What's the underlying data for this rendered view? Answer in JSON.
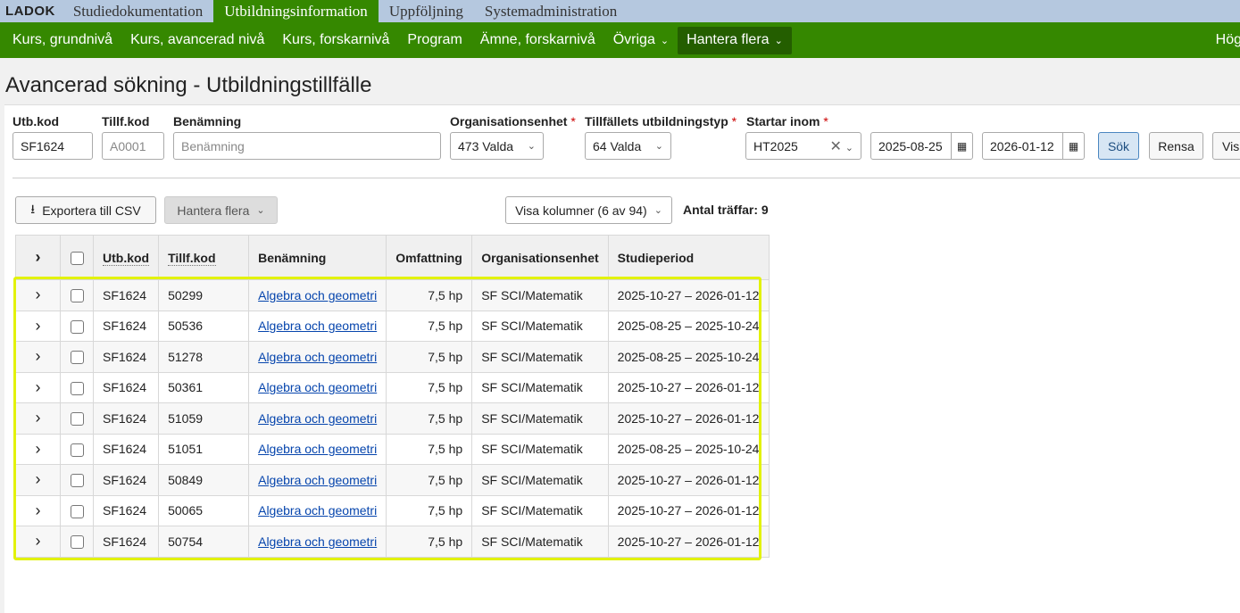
{
  "topnav": {
    "logo": "LADOK",
    "tabs": [
      "Studiedokumentation",
      "Utbildningsinformation",
      "Uppföljning",
      "Systemadministration"
    ],
    "active": 1
  },
  "subnav": {
    "items": [
      "Kurs, grundnivå",
      "Kurs, avancerad nivå",
      "Kurs, forskarnivå",
      "Program",
      "Ämne, forskarnivå",
      "Övriga",
      "Hantera flera"
    ],
    "right": "Högs"
  },
  "page_title": "Avancerad sökning - Utbildningstillfälle",
  "filters": {
    "utb_kod": {
      "label": "Utb.kod",
      "value": "SF1624"
    },
    "tillf_kod": {
      "label": "Tillf.kod",
      "placeholder": "A0001"
    },
    "benamning": {
      "label": "Benämning",
      "placeholder": "Benämning"
    },
    "org": {
      "label": "Organisationsenhet",
      "value": "473 Valda"
    },
    "typ": {
      "label": "Tillfällets utbildningstyp",
      "value": "64 Valda"
    },
    "startar": {
      "label": "Startar inom",
      "value": "HT2025",
      "from": "2025-08-25",
      "to": "2026-01-12"
    },
    "required_mark": "*",
    "search": "Sök",
    "clear": "Rensa",
    "more": "Vis"
  },
  "toolbar": {
    "export": "Exportera till CSV",
    "manage": "Hantera flera",
    "columns": "Visa kolumner (6 av 94)",
    "hits": "Antal träffar: 9"
  },
  "table": {
    "headers": [
      "Utb.kod",
      "Tillf.kod",
      "Benämning",
      "Omfattning",
      "Organisationsenhet",
      "Studieperiod"
    ],
    "rows": [
      [
        "SF1624",
        "50299",
        "Algebra och geometri",
        "7,5 hp",
        "SF SCI/Matematik",
        "2025-10-27 – 2026-01-12"
      ],
      [
        "SF1624",
        "50536",
        "Algebra och geometri",
        "7,5 hp",
        "SF SCI/Matematik",
        "2025-08-25 – 2025-10-24"
      ],
      [
        "SF1624",
        "51278",
        "Algebra och geometri",
        "7,5 hp",
        "SF SCI/Matematik",
        "2025-08-25 – 2025-10-24"
      ],
      [
        "SF1624",
        "50361",
        "Algebra och geometri",
        "7,5 hp",
        "SF SCI/Matematik",
        "2025-10-27 – 2026-01-12"
      ],
      [
        "SF1624",
        "51059",
        "Algebra och geometri",
        "7,5 hp",
        "SF SCI/Matematik",
        "2025-10-27 – 2026-01-12"
      ],
      [
        "SF1624",
        "51051",
        "Algebra och geometri",
        "7,5 hp",
        "SF SCI/Matematik",
        "2025-08-25 – 2025-10-24"
      ],
      [
        "SF1624",
        "50849",
        "Algebra och geometri",
        "7,5 hp",
        "SF SCI/Matematik",
        "2025-10-27 – 2026-01-12"
      ],
      [
        "SF1624",
        "50065",
        "Algebra och geometri",
        "7,5 hp",
        "SF SCI/Matematik",
        "2025-10-27 – 2026-01-12"
      ],
      [
        "SF1624",
        "50754",
        "Algebra och geometri",
        "7,5 hp",
        "SF SCI/Matematik",
        "2025-10-27 – 2026-01-12"
      ]
    ]
  },
  "colors": {
    "green": "#358800",
    "topnav": "#b5c8df",
    "highlight": "#e2f20a",
    "link": "#0645ad"
  }
}
